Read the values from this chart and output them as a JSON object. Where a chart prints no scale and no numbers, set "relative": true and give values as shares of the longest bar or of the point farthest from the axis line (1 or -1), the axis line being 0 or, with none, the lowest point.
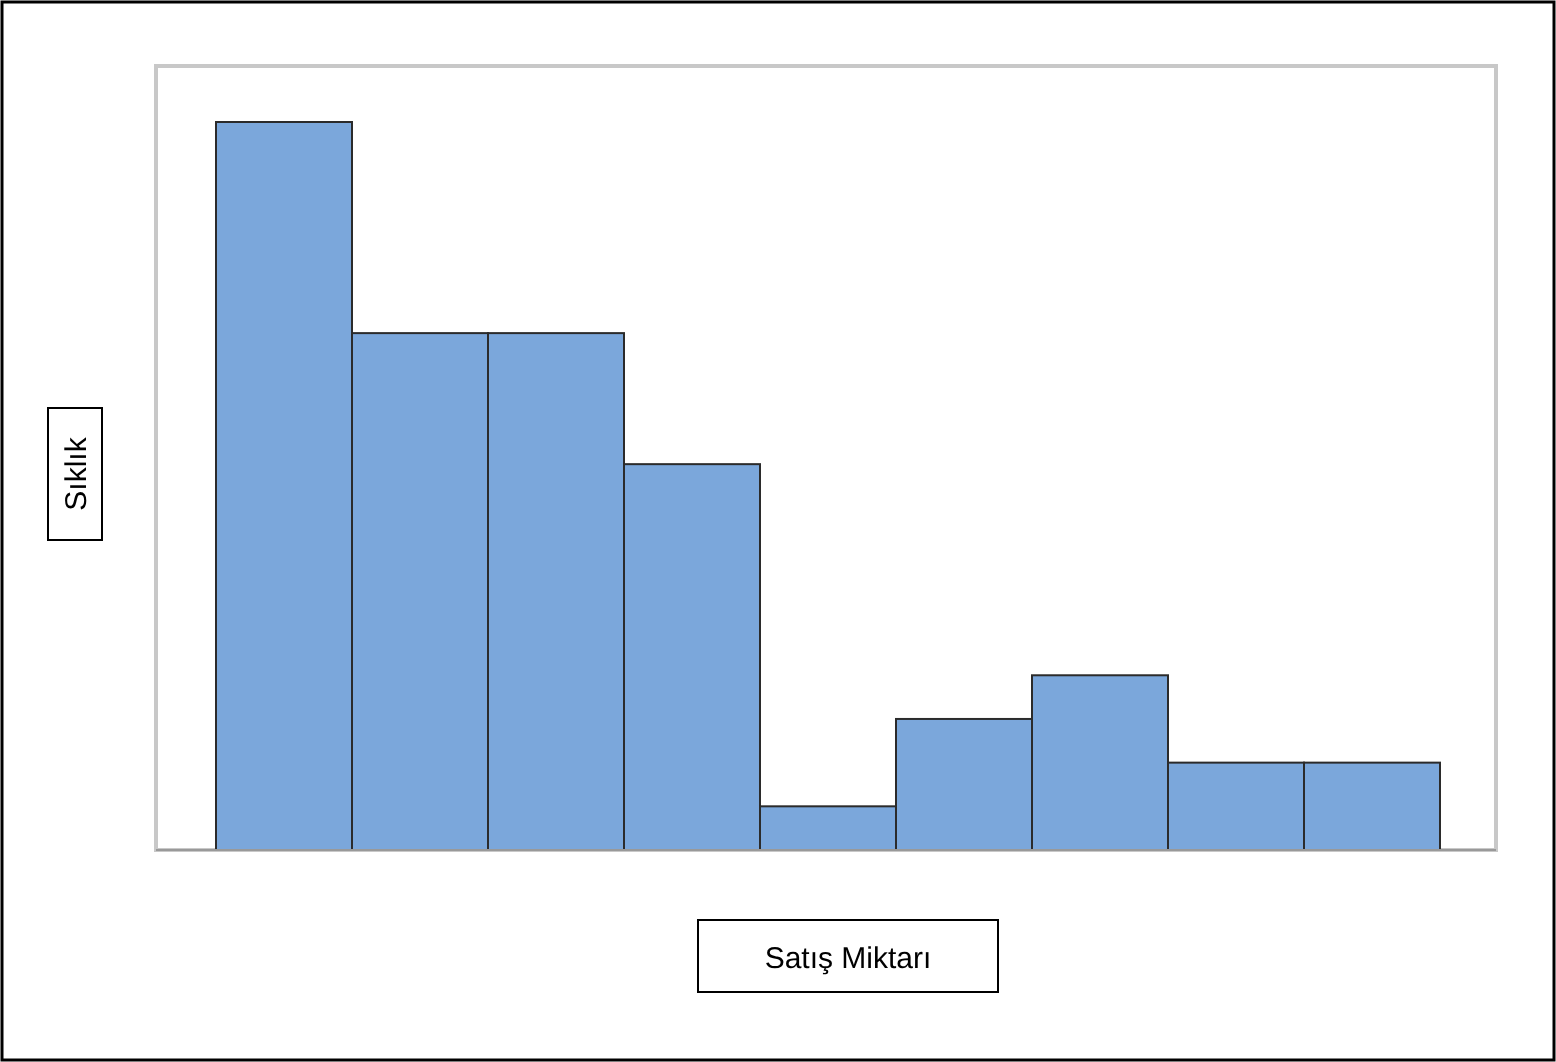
{
  "chart_data": {
    "type": "bar",
    "relative": true,
    "xlabel": "Satış Miktarı",
    "ylabel": "Sıklık",
    "categories": [
      null,
      null,
      null,
      null,
      null,
      null,
      null,
      null,
      null
    ],
    "values": [
      1,
      0.71,
      0.71,
      0.53,
      0.06,
      0.18,
      0.24,
      0.12,
      0.12
    ],
    "color": "#7ba7db"
  }
}
